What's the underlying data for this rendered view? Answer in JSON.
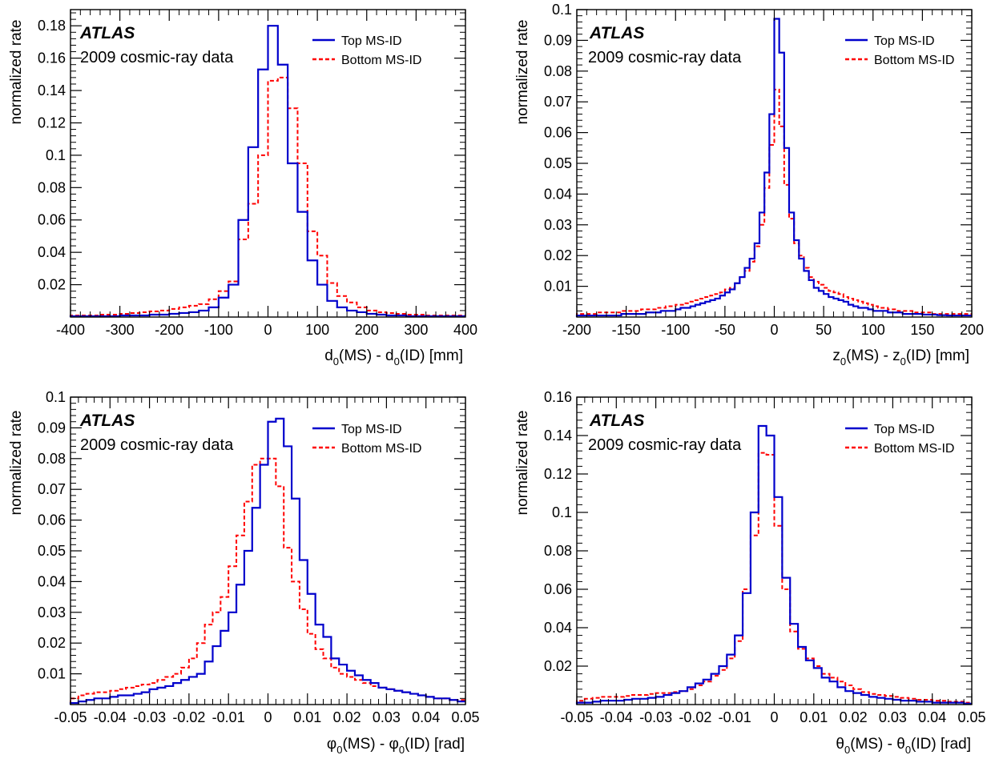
{
  "panels": [
    {
      "atlas_label": "ATLAS",
      "data_label": "2009 cosmic-ray data",
      "ylabel": "normalized rate",
      "xlabel": {
        "pre": "d",
        "sub1": "0",
        "mid": "(MS) - d",
        "sub2": "0",
        "post": "(ID) [mm]"
      }
    },
    {
      "atlas_label": "ATLAS",
      "data_label": "2009 cosmic-ray data",
      "ylabel": "normalized rate",
      "xlabel": {
        "pre": "z",
        "sub1": "0",
        "mid": "(MS) - z",
        "sub2": "0",
        "post": "(ID) [mm]"
      }
    },
    {
      "atlas_label": "ATLAS",
      "data_label": "2009 cosmic-ray data",
      "ylabel": "normalized rate",
      "xlabel": {
        "pre": "φ",
        "sub1": "0",
        "mid": "(MS) - φ",
        "sub2": "0",
        "post": "(ID) [rad]"
      }
    },
    {
      "atlas_label": "ATLAS",
      "data_label": "2009 cosmic-ray data",
      "ylabel": "normalized rate",
      "xlabel": {
        "pre": "θ",
        "sub1": "0",
        "mid": "(MS) - θ",
        "sub2": "0",
        "post": "(ID) [rad]"
      }
    }
  ],
  "colors": {
    "top": "#0000cc",
    "bottom": "#ff0000"
  },
  "chart_data": [
    {
      "type": "histogram",
      "xlim": [
        -400,
        400
      ],
      "ylim": [
        0,
        0.19
      ],
      "xticks": [
        -400,
        -300,
        -200,
        -100,
        0,
        100,
        200,
        300,
        400
      ],
      "xtick_labels": [
        "-400",
        "-300",
        "-200",
        "-100",
        "0",
        "100",
        "200",
        "300",
        "400"
      ],
      "yticks": [
        0.02,
        0.04,
        0.06,
        0.08,
        0.1,
        0.12,
        0.14,
        0.16,
        0.18
      ],
      "ytick_labels": [
        "0.02",
        "0.04",
        "0.06",
        "0.08",
        "0.1",
        "0.12",
        "0.14",
        "0.16",
        "0.18"
      ],
      "bin_edges": [
        -400,
        -380,
        -360,
        -340,
        -320,
        -300,
        -280,
        -260,
        -240,
        -220,
        -200,
        -180,
        -160,
        -140,
        -120,
        -100,
        -80,
        -60,
        -40,
        -20,
        0,
        20,
        40,
        60,
        80,
        100,
        120,
        140,
        160,
        180,
        200,
        220,
        240,
        260,
        280,
        300,
        320,
        340,
        360,
        380,
        400
      ],
      "series": [
        {
          "name": "Top MS-ID",
          "style": "solid",
          "values": [
            0.0005,
            0.0005,
            0.0005,
            0.0005,
            0.0005,
            0.001,
            0.001,
            0.001,
            0.0015,
            0.0015,
            0.002,
            0.0025,
            0.003,
            0.004,
            0.006,
            0.012,
            0.02,
            0.06,
            0.105,
            0.153,
            0.18,
            0.156,
            0.095,
            0.065,
            0.035,
            0.02,
            0.01,
            0.006,
            0.004,
            0.003,
            0.002,
            0.0015,
            0.001,
            0.001,
            0.0005,
            0.0005,
            0.0005,
            0.0005,
            0.0005,
            0.0005
          ]
        },
        {
          "name": "Bottom MS-ID",
          "style": "dashed",
          "values": [
            0.001,
            0.001,
            0.001,
            0.0015,
            0.0015,
            0.002,
            0.0025,
            0.003,
            0.0035,
            0.004,
            0.005,
            0.006,
            0.007,
            0.008,
            0.011,
            0.016,
            0.022,
            0.048,
            0.07,
            0.1,
            0.146,
            0.148,
            0.129,
            0.095,
            0.053,
            0.038,
            0.021,
            0.013,
            0.009,
            0.006,
            0.004,
            0.003,
            0.0025,
            0.002,
            0.0015,
            0.0015,
            0.001,
            0.001,
            0.001,
            0.001
          ]
        }
      ],
      "legend": "top-right"
    },
    {
      "type": "histogram",
      "xlim": [
        -200,
        200
      ],
      "ylim": [
        0,
        0.1
      ],
      "xticks": [
        -200,
        -150,
        -100,
        -50,
        0,
        50,
        100,
        150,
        200
      ],
      "xtick_labels": [
        "-200",
        "-150",
        "-100",
        "-50",
        "0",
        "50",
        "100",
        "150",
        "200"
      ],
      "yticks": [
        0.01,
        0.02,
        0.03,
        0.04,
        0.05,
        0.06,
        0.07,
        0.08,
        0.09,
        0.1
      ],
      "ytick_labels": [
        "0.01",
        "0.02",
        "0.03",
        "0.04",
        "0.05",
        "0.06",
        "0.07",
        "0.08",
        "0.09",
        "0.1"
      ],
      "bin_edges": [
        -200,
        -195,
        -190,
        -185,
        -180,
        -175,
        -170,
        -165,
        -160,
        -155,
        -150,
        -145,
        -140,
        -135,
        -130,
        -125,
        -120,
        -115,
        -110,
        -105,
        -100,
        -95,
        -90,
        -85,
        -80,
        -75,
        -70,
        -65,
        -60,
        -55,
        -50,
        -45,
        -40,
        -35,
        -30,
        -25,
        -20,
        -15,
        -10,
        -5,
        0,
        5,
        10,
        15,
        20,
        25,
        30,
        35,
        40,
        45,
        50,
        55,
        60,
        65,
        70,
        75,
        80,
        85,
        90,
        95,
        100,
        105,
        110,
        115,
        120,
        125,
        130,
        135,
        140,
        145,
        150,
        155,
        160,
        165,
        170,
        175,
        180,
        185,
        190,
        195,
        200
      ],
      "series": [
        {
          "name": "Top MS-ID",
          "style": "solid",
          "values": [
            0.0005,
            0.0005,
            0.0005,
            0.0005,
            0.0005,
            0.0005,
            0.0005,
            0.0005,
            0.0005,
            0.001,
            0.001,
            0.001,
            0.001,
            0.001,
            0.0015,
            0.0015,
            0.0015,
            0.002,
            0.002,
            0.002,
            0.0025,
            0.003,
            0.003,
            0.0035,
            0.004,
            0.0045,
            0.005,
            0.0055,
            0.006,
            0.007,
            0.008,
            0.009,
            0.011,
            0.013,
            0.016,
            0.019,
            0.024,
            0.034,
            0.047,
            0.066,
            0.097,
            0.086,
            0.055,
            0.034,
            0.025,
            0.019,
            0.015,
            0.012,
            0.0095,
            0.0085,
            0.0075,
            0.0065,
            0.006,
            0.0055,
            0.005,
            0.004,
            0.0035,
            0.003,
            0.003,
            0.0025,
            0.002,
            0.002,
            0.002,
            0.0015,
            0.0015,
            0.0015,
            0.001,
            0.001,
            0.001,
            0.001,
            0.0008,
            0.0008,
            0.0008,
            0.0006,
            0.0006,
            0.0005,
            0.0005,
            0.0005,
            0.0005,
            0.0005
          ]
        },
        {
          "name": "Bottom MS-ID",
          "style": "dashed",
          "values": [
            0.001,
            0.001,
            0.001,
            0.001,
            0.0015,
            0.0015,
            0.0015,
            0.0015,
            0.0015,
            0.002,
            0.002,
            0.002,
            0.002,
            0.0025,
            0.0025,
            0.0025,
            0.003,
            0.003,
            0.0035,
            0.0035,
            0.004,
            0.004,
            0.0045,
            0.005,
            0.0055,
            0.006,
            0.0065,
            0.007,
            0.0075,
            0.008,
            0.009,
            0.0095,
            0.011,
            0.013,
            0.015,
            0.018,
            0.023,
            0.03,
            0.042,
            0.056,
            0.074,
            0.062,
            0.043,
            0.032,
            0.024,
            0.02,
            0.016,
            0.013,
            0.0115,
            0.0105,
            0.0095,
            0.0085,
            0.008,
            0.0075,
            0.0065,
            0.006,
            0.0055,
            0.005,
            0.0045,
            0.004,
            0.0035,
            0.003,
            0.003,
            0.0025,
            0.0025,
            0.002,
            0.002,
            0.002,
            0.0015,
            0.0015,
            0.0015,
            0.0015,
            0.001,
            0.001,
            0.001,
            0.001,
            0.001,
            0.001,
            0.001,
            0.001
          ]
        }
      ],
      "legend": "top-right"
    },
    {
      "type": "histogram",
      "xlim": [
        -0.05,
        0.05
      ],
      "ylim": [
        0,
        0.1
      ],
      "xticks": [
        -0.05,
        -0.04,
        -0.03,
        -0.02,
        -0.01,
        0,
        0.01,
        0.02,
        0.03,
        0.04,
        0.05
      ],
      "xtick_labels": [
        "-0.05",
        "-0.04",
        "-0.03",
        "-0.02",
        "-0.01",
        "0",
        "0.01",
        "0.02",
        "0.03",
        "0.04",
        "0.05"
      ],
      "yticks": [
        0.01,
        0.02,
        0.03,
        0.04,
        0.05,
        0.06,
        0.07,
        0.08,
        0.09,
        0.1
      ],
      "ytick_labels": [
        "0.01",
        "0.02",
        "0.03",
        "0.04",
        "0.05",
        "0.06",
        "0.07",
        "0.08",
        "0.09",
        "0.1"
      ],
      "bin_edges": [
        -0.05,
        -0.048,
        -0.046,
        -0.044,
        -0.042,
        -0.04,
        -0.038,
        -0.036,
        -0.034,
        -0.032,
        -0.03,
        -0.028,
        -0.026,
        -0.024,
        -0.022,
        -0.02,
        -0.018,
        -0.016,
        -0.014,
        -0.012,
        -0.01,
        -0.008,
        -0.006,
        -0.004,
        -0.002,
        0,
        0.002,
        0.004,
        0.006,
        0.008,
        0.01,
        0.012,
        0.014,
        0.016,
        0.018,
        0.02,
        0.022,
        0.024,
        0.026,
        0.028,
        0.03,
        0.032,
        0.034,
        0.036,
        0.038,
        0.04,
        0.042,
        0.044,
        0.046,
        0.048,
        0.05
      ],
      "series": [
        {
          "name": "Top MS-ID",
          "style": "solid",
          "values": [
            0.0005,
            0.001,
            0.0015,
            0.002,
            0.002,
            0.0025,
            0.003,
            0.003,
            0.0035,
            0.004,
            0.005,
            0.0055,
            0.006,
            0.007,
            0.008,
            0.009,
            0.01,
            0.014,
            0.019,
            0.024,
            0.03,
            0.039,
            0.05,
            0.064,
            0.078,
            0.092,
            0.093,
            0.084,
            0.067,
            0.047,
            0.036,
            0.026,
            0.022,
            0.015,
            0.013,
            0.011,
            0.0095,
            0.008,
            0.007,
            0.0055,
            0.005,
            0.0045,
            0.004,
            0.0035,
            0.003,
            0.0025,
            0.002,
            0.002,
            0.0015,
            0.001
          ]
        },
        {
          "name": "Bottom MS-ID",
          "style": "dashed",
          "values": [
            0.002,
            0.003,
            0.0035,
            0.004,
            0.004,
            0.0045,
            0.005,
            0.0055,
            0.006,
            0.0065,
            0.007,
            0.008,
            0.009,
            0.01,
            0.012,
            0.015,
            0.02,
            0.026,
            0.03,
            0.035,
            0.045,
            0.055,
            0.066,
            0.078,
            0.08,
            0.08,
            0.071,
            0.051,
            0.04,
            0.031,
            0.023,
            0.018,
            0.015,
            0.012,
            0.01,
            0.009,
            0.008,
            0.007,
            0.006,
            0.0055,
            0.005,
            0.0045,
            0.004,
            0.0035,
            0.003,
            0.0025,
            0.002,
            0.002,
            0.0015,
            0.0015
          ]
        }
      ],
      "legend": "top-right"
    },
    {
      "type": "histogram",
      "xlim": [
        -0.05,
        0.05
      ],
      "ylim": [
        0,
        0.16
      ],
      "xticks": [
        -0.05,
        -0.04,
        -0.03,
        -0.02,
        -0.01,
        0,
        0.01,
        0.02,
        0.03,
        0.04,
        0.05
      ],
      "xtick_labels": [
        "-0.05",
        "-0.04",
        "-0.03",
        "-0.02",
        "-0.01",
        "0",
        "0.01",
        "0.02",
        "0.03",
        "0.04",
        "0.05"
      ],
      "yticks": [
        0.02,
        0.04,
        0.06,
        0.08,
        0.1,
        0.12,
        0.14,
        0.16
      ],
      "ytick_labels": [
        "0.02",
        "0.04",
        "0.06",
        "0.08",
        "0.1",
        "0.12",
        "0.14",
        "0.16"
      ],
      "bin_edges": [
        -0.05,
        -0.048,
        -0.046,
        -0.044,
        -0.042,
        -0.04,
        -0.038,
        -0.036,
        -0.034,
        -0.032,
        -0.03,
        -0.028,
        -0.026,
        -0.024,
        -0.022,
        -0.02,
        -0.018,
        -0.016,
        -0.014,
        -0.012,
        -0.01,
        -0.008,
        -0.006,
        -0.004,
        -0.002,
        0,
        0.002,
        0.004,
        0.006,
        0.008,
        0.01,
        0.012,
        0.014,
        0.016,
        0.018,
        0.02,
        0.022,
        0.024,
        0.026,
        0.028,
        0.03,
        0.032,
        0.034,
        0.036,
        0.038,
        0.04,
        0.042,
        0.044,
        0.046,
        0.048,
        0.05
      ],
      "series": [
        {
          "name": "Top MS-ID",
          "style": "solid",
          "values": [
            0.001,
            0.001,
            0.0015,
            0.002,
            0.002,
            0.002,
            0.0025,
            0.003,
            0.003,
            0.0035,
            0.004,
            0.005,
            0.006,
            0.007,
            0.009,
            0.011,
            0.013,
            0.016,
            0.02,
            0.026,
            0.036,
            0.058,
            0.1,
            0.145,
            0.14,
            0.108,
            0.066,
            0.042,
            0.03,
            0.023,
            0.019,
            0.014,
            0.012,
            0.009,
            0.007,
            0.006,
            0.005,
            0.004,
            0.0035,
            0.003,
            0.0025,
            0.002,
            0.002,
            0.0015,
            0.0015,
            0.001,
            0.001,
            0.001,
            0.001,
            0.0005
          ]
        },
        {
          "name": "Bottom MS-ID",
          "style": "dashed",
          "values": [
            0.002,
            0.003,
            0.0035,
            0.004,
            0.004,
            0.004,
            0.0045,
            0.005,
            0.005,
            0.0055,
            0.006,
            0.006,
            0.0065,
            0.007,
            0.008,
            0.01,
            0.012,
            0.015,
            0.018,
            0.024,
            0.033,
            0.06,
            0.088,
            0.131,
            0.13,
            0.093,
            0.06,
            0.038,
            0.029,
            0.024,
            0.02,
            0.016,
            0.014,
            0.012,
            0.01,
            0.008,
            0.0065,
            0.0055,
            0.005,
            0.0045,
            0.004,
            0.0035,
            0.003,
            0.0025,
            0.0025,
            0.002,
            0.002,
            0.0015,
            0.0015,
            0.001
          ]
        }
      ],
      "legend": "top-right"
    }
  ]
}
